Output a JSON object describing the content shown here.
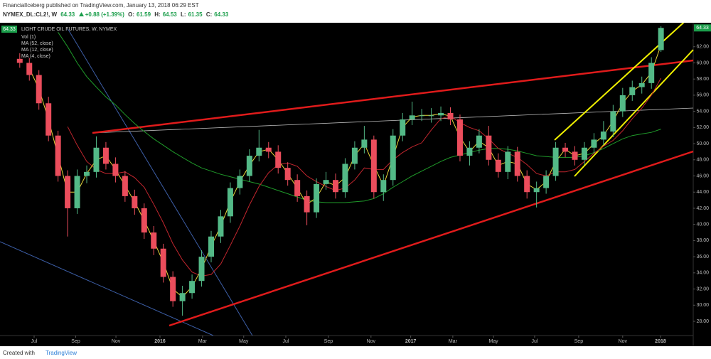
{
  "chart_data": {
    "type": "candlestick",
    "publisher_line": "FinancialIceberg published on TradingView.com, January 13, 2018 06:29 EST",
    "symbol": "NYMEX_DL:CL2!, W",
    "change": "+0.88 (+1.39%)",
    "quote_labels": [
      "O:",
      "H:",
      "L:",
      "C:"
    ],
    "title": "LIGHT CRUDE OIL FUTURES, W, NYMEX",
    "footer": [
      "Created with",
      "TradingView"
    ],
    "up_color": "#53b987",
    "down_color": "#eb4d5c",
    "tag_color": "#1b9e4b",
    "x": [
      -3,
      -1,
      1,
      3,
      5,
      7,
      9,
      11,
      13,
      15,
      17,
      19,
      21,
      23,
      25,
      27,
      29,
      31,
      33,
      35,
      37,
      39,
      41,
      43,
      45,
      47,
      49,
      51,
      53,
      55,
      57,
      59,
      61,
      63,
      65,
      67,
      69,
      71,
      73,
      75,
      77,
      79,
      81,
      83,
      85,
      87,
      89,
      91,
      93,
      95,
      97,
      99,
      101,
      103,
      105,
      107,
      109,
      111,
      113,
      115,
      117,
      119,
      121,
      123,
      125,
      127,
      129,
      131
    ],
    "open": [
      60.5,
      60,
      58.5,
      55,
      51,
      46,
      42,
      46,
      46.5,
      49.5,
      47.5,
      46,
      43.5,
      42,
      39,
      37,
      33.5,
      30.5,
      31.5,
      33,
      36,
      38.5,
      41,
      44.5,
      46,
      48.5,
      49.5,
      49,
      47,
      45.5,
      43.5,
      41.5,
      45,
      45.5,
      44,
      47.5,
      49.5,
      50.5,
      44,
      45.5,
      51,
      53,
      53.5,
      53.5,
      53.5,
      53.8,
      53,
      48.5,
      49.5,
      51,
      48,
      46.5,
      49,
      46,
      44,
      44.5,
      46,
      49.5,
      49,
      48,
      49.5,
      50.5,
      51.5,
      54,
      56,
      57,
      57.5,
      61.59
    ],
    "high": [
      61.2,
      60.6,
      59.1,
      55.8,
      51.6,
      46.7,
      46.8,
      47.3,
      50.9,
      50.2,
      48.3,
      46.6,
      44.3,
      42.6,
      39.8,
      37.6,
      34.2,
      32.4,
      33.8,
      36.8,
      39.2,
      41.8,
      45.2,
      46.8,
      49.3,
      51.7,
      50.2,
      49.8,
      47.7,
      46.2,
      44.2,
      45.7,
      46.5,
      46.3,
      48.2,
      50.3,
      52.2,
      51,
      46.2,
      51.8,
      53.8,
      55.2,
      54.3,
      54.4,
      54.6,
      54.5,
      53.6,
      50.3,
      51.8,
      52.2,
      48.8,
      49.7,
      49.6,
      46.7,
      45.3,
      46.7,
      50.2,
      50.1,
      49.7,
      50.2,
      51.3,
      52.8,
      54.8,
      56.9,
      57.8,
      58.3,
      60.7,
      64.53
    ],
    "low": [
      59.4,
      57.8,
      54.2,
      50.3,
      45.3,
      38.5,
      41.3,
      45.1,
      45.8,
      46.8,
      45.2,
      42.8,
      41.2,
      38.2,
      36.2,
      32.8,
      29.8,
      28.7,
      30.8,
      32.3,
      35.3,
      37.7,
      40.2,
      43.7,
      45.3,
      47.8,
      48.2,
      46.3,
      44.8,
      42.8,
      39.9,
      40.8,
      44.3,
      43.2,
      43.3,
      46.8,
      48.8,
      43.2,
      42.9,
      44.8,
      50.3,
      52.3,
      52.8,
      52.6,
      52.8,
      52.3,
      47.8,
      47.3,
      48.8,
      47.3,
      45.8,
      45.6,
      45.3,
      43.2,
      42.1,
      43.8,
      45.4,
      48.3,
      47.3,
      47.4,
      48.8,
      49.8,
      50.8,
      53.3,
      55.3,
      56.2,
      56.8,
      61.35
    ],
    "close": [
      60,
      58.5,
      55,
      51,
      46,
      42,
      46,
      46.5,
      49.5,
      47.5,
      46,
      43.5,
      42,
      39,
      37,
      33.5,
      30.5,
      31.5,
      33,
      36,
      38.5,
      41,
      44.5,
      46,
      48.5,
      49.5,
      49,
      47,
      45.5,
      43.5,
      41.5,
      45,
      45.5,
      44,
      47.5,
      49.5,
      50.5,
      44,
      45.5,
      51,
      53,
      53.5,
      53.5,
      53.5,
      53.8,
      53,
      48.5,
      49.5,
      51,
      48,
      46.5,
      49,
      46,
      44,
      44.5,
      46,
      49.5,
      49,
      48,
      49.5,
      50.5,
      51.5,
      54,
      56,
      57,
      57.5,
      60,
      64.33
    ],
    "studies": [
      {
        "name": "Vol (1)"
      },
      {
        "name": "MA (52, close)",
        "color": "#1f9a2a",
        "values": [
          null,
          null,
          null,
          null,
          63.8,
          62,
          60,
          58.3,
          57,
          55.8,
          54.8,
          53.6,
          52.5,
          51.5,
          50.6,
          49.8,
          49,
          48.3,
          47.6,
          47,
          46.6,
          46.2,
          45.9,
          45.6,
          45.3,
          45,
          44.6,
          44.2,
          43.8,
          43.4,
          43,
          42.8,
          42.7,
          42.7,
          42.7,
          42.8,
          42.9,
          43.2,
          43.8,
          44.6,
          45.3,
          46,
          46.6,
          47.2,
          47.8,
          48.3,
          48.6,
          48.9,
          49.2,
          49.4,
          49.4,
          49.3,
          49.1,
          48.8,
          48.5,
          48.4,
          48.3,
          48.3,
          48.3,
          48.5,
          48.9,
          49.4,
          50,
          50.6,
          51,
          51.2,
          51.4,
          51.8
        ]
      },
      {
        "name": "MA (12, close)",
        "color": "#c2262e",
        "values": [
          null,
          null,
          null,
          null,
          null,
          52.1,
          49.8,
          47.8,
          46.8,
          46.3,
          46.3,
          46.5,
          45.8,
          44.6,
          42.5,
          40.2,
          37.6,
          35.6,
          34.1,
          33.6,
          33.8,
          35.1,
          37.4,
          39.8,
          42.4,
          44.7,
          46.4,
          47.4,
          47.6,
          47.2,
          46,
          45.3,
          44.7,
          44.2,
          44.5,
          45.5,
          47,
          46.8,
          46.8,
          48,
          48.9,
          49.6,
          50.1,
          51.7,
          53.1,
          53.4,
          52.6,
          52,
          51.6,
          50.6,
          49.4,
          48.8,
          48.3,
          47.4,
          46.3,
          46,
          46.5,
          46.5,
          46.8,
          47.8,
          48.8,
          49.7,
          50.4,
          51.6,
          53.1,
          54.4,
          56,
          58.1
        ]
      },
      {
        "name": "MA (4, close)",
        "color": "#e8d63a",
        "values": [
          null,
          59.3,
          56.8,
          53,
          48.5,
          44,
          44,
          46.3,
          48,
          48.5,
          46.8,
          44.8,
          42.8,
          40.5,
          38,
          35.3,
          32,
          31,
          32.3,
          34.5,
          37.3,
          39.8,
          42.8,
          45.3,
          47.3,
          49,
          49.3,
          48,
          46.3,
          44.5,
          42.5,
          43.3,
          45.3,
          44.8,
          45.8,
          48.5,
          50,
          47.3,
          44.8,
          48.3,
          52,
          53.3,
          53.5,
          53.5,
          53.7,
          53.4,
          50.8,
          49,
          50.3,
          49.5,
          47.3,
          47.8,
          47.5,
          45,
          44.3,
          45.3,
          47.8,
          49.3,
          48.5,
          48.8,
          50,
          51,
          52.8,
          55,
          56.5,
          57.3,
          58.8,
          62.2
        ]
      }
    ],
    "xlim": [
      -7.13,
      137.74
    ],
    "xticks": [
      {
        "value": 0,
        "label": "Jul"
      },
      {
        "value": 8.7,
        "label": "Sep"
      },
      {
        "value": 17.1,
        "label": "Nov"
      },
      {
        "value": 26.3,
        "label": "2016"
      },
      {
        "value": 35.2,
        "label": "Mar"
      },
      {
        "value": 43.8,
        "label": "May"
      },
      {
        "value": 52.6,
        "label": "Jul"
      },
      {
        "value": 61.5,
        "label": "Sep"
      },
      {
        "value": 70.4,
        "label": "Nov"
      },
      {
        "value": 78.7,
        "label": "2017"
      },
      {
        "value": 87.5,
        "label": "Mar"
      },
      {
        "value": 96,
        "label": "May"
      },
      {
        "value": 104.6,
        "label": "Jul"
      },
      {
        "value": 113.8,
        "label": "Sep"
      },
      {
        "value": 123,
        "label": "Nov"
      },
      {
        "value": 130.9,
        "label": "2018"
      }
    ],
    "ylim": [
      26.24,
      64.97
    ],
    "yticks": [
      {
        "value": 28,
        "label": "28.00"
      },
      {
        "value": 30,
        "label": "30.00"
      },
      {
        "value": 32,
        "label": "32.00"
      },
      {
        "value": 34,
        "label": "34.00"
      },
      {
        "value": 36,
        "label": "36.00"
      },
      {
        "value": 38,
        "label": "38.00"
      },
      {
        "value": 40,
        "label": "40.00"
      },
      {
        "value": 42,
        "label": "42.00"
      },
      {
        "value": 44,
        "label": "44.00"
      },
      {
        "value": 46,
        "label": "46.00"
      },
      {
        "value": 48,
        "label": "48.00"
      },
      {
        "value": 50,
        "label": "50.00"
      },
      {
        "value": 52,
        "label": "52.00"
      },
      {
        "value": 54,
        "label": "54.00"
      },
      {
        "value": 56,
        "label": "56.00"
      },
      {
        "value": 58,
        "label": "58.00"
      },
      {
        "value": 60,
        "label": "60.00"
      },
      {
        "value": 62,
        "label": "62.00"
      }
    ],
    "grid": false
  }
}
